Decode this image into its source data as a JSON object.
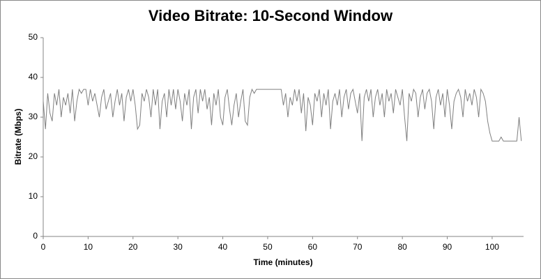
{
  "chart_data": {
    "type": "line",
    "title": "Video Bitrate: 10-Second Window",
    "x_label": "Time (minutes)",
    "y_label": "Bitrate (Mbps)",
    "xlim": [
      0,
      107
    ],
    "ylim": [
      0,
      50
    ],
    "xticks": [
      0,
      10,
      20,
      30,
      40,
      50,
      60,
      70,
      80,
      90,
      100
    ],
    "yticks": [
      0,
      10,
      20,
      30,
      40,
      50
    ],
    "x": [
      0,
      0.5,
      1,
      1.5,
      2,
      2.5,
      3,
      3.5,
      4,
      4.5,
      5,
      5.5,
      6,
      6.5,
      7,
      7.5,
      8,
      8.5,
      9,
      9.5,
      10,
      10.5,
      11,
      11.5,
      12,
      12.5,
      13,
      13.5,
      14,
      14.5,
      15,
      15.5,
      16,
      16.5,
      17,
      17.5,
      18,
      18.5,
      19,
      19.5,
      20,
      20.5,
      21,
      21.5,
      22,
      22.5,
      23,
      23.5,
      24,
      24.5,
      25,
      25.5,
      26,
      26.5,
      27,
      27.5,
      28,
      28.5,
      29,
      29.5,
      30,
      30.5,
      31,
      31.5,
      32,
      32.5,
      33,
      33.5,
      34,
      34.5,
      35,
      35.5,
      36,
      36.5,
      37,
      37.5,
      38,
      38.5,
      39,
      39.5,
      40,
      40.5,
      41,
      41.5,
      42,
      42.5,
      43,
      43.5,
      44,
      44.5,
      45,
      45.5,
      46,
      46.5,
      47,
      47.5,
      48,
      48.5,
      49,
      49.5,
      50,
      50.5,
      51,
      51.5,
      52,
      52.5,
      53,
      53.5,
      54,
      54.5,
      55,
      55.5,
      56,
      56.5,
      57,
      57.5,
      58,
      58.5,
      59,
      59.5,
      60,
      60.5,
      61,
      61.5,
      62,
      62.5,
      63,
      63.5,
      64,
      64.5,
      65,
      65.5,
      66,
      66.5,
      67,
      67.5,
      68,
      68.5,
      69,
      69.5,
      70,
      70.5,
      71,
      71.5,
      72,
      72.5,
      73,
      73.5,
      74,
      74.5,
      75,
      75.5,
      76,
      76.5,
      77,
      77.5,
      78,
      78.5,
      79,
      79.5,
      80,
      80.5,
      81,
      81.5,
      82,
      82.5,
      83,
      83.5,
      84,
      84.5,
      85,
      85.5,
      86,
      86.5,
      87,
      87.5,
      88,
      88.5,
      89,
      89.5,
      90,
      90.5,
      91,
      91.5,
      92,
      92.5,
      93,
      93.5,
      94,
      94.5,
      95,
      95.5,
      96,
      96.5,
      97,
      97.5,
      98,
      98.5,
      99,
      99.5,
      100,
      100.5,
      101,
      101.5,
      102,
      102.5,
      103,
      103.5,
      104,
      104.5,
      105,
      105.5,
      106,
      106.5
    ],
    "series": [
      {
        "name": "Bitrate",
        "color": "#7f7f7f",
        "values": [
          34,
          27,
          36,
          31,
          29,
          36,
          33,
          37,
          30,
          35,
          33,
          36,
          31,
          37,
          29,
          34,
          37,
          36,
          37,
          37,
          33,
          37,
          34,
          36,
          33,
          30,
          35,
          37,
          32,
          34,
          36,
          30,
          34,
          37,
          33,
          36,
          29,
          35,
          37,
          34,
          37,
          33,
          27,
          28,
          36,
          34,
          37,
          35,
          30,
          37,
          33,
          37,
          27,
          34,
          36,
          30,
          37,
          33,
          37,
          32,
          37,
          34,
          29,
          36,
          33,
          37,
          27,
          35,
          37,
          31,
          37,
          34,
          37,
          32,
          35,
          28,
          36,
          33,
          37,
          30,
          28,
          35,
          37,
          32,
          28,
          33,
          36,
          30,
          34,
          37,
          29,
          28,
          35,
          37,
          36,
          37,
          37,
          37,
          37,
          37,
          37,
          37,
          37,
          37,
          37,
          37,
          37,
          33,
          36,
          30,
          35,
          33,
          37,
          34,
          37,
          31,
          36,
          26.5,
          35,
          33,
          28,
          36,
          34,
          37,
          30,
          36,
          33,
          37,
          27,
          34,
          36,
          33,
          37,
          30,
          35,
          37,
          32,
          36,
          37,
          34,
          31,
          36,
          24,
          35,
          37,
          34,
          37,
          30,
          35,
          37,
          33,
          36,
          30,
          37,
          34,
          36,
          31,
          37,
          35,
          33,
          37,
          30,
          24,
          36,
          34,
          37,
          36,
          30,
          35,
          37,
          32,
          36,
          37,
          34,
          27,
          35,
          37,
          33,
          36,
          30,
          37,
          33,
          27,
          34,
          36,
          37,
          35,
          30,
          37,
          34,
          36,
          33,
          37,
          35,
          30,
          37,
          36,
          34,
          29,
          26,
          24,
          24,
          24,
          24,
          25,
          24,
          24,
          24,
          24,
          24,
          24,
          24,
          30,
          24
        ]
      }
    ]
  }
}
